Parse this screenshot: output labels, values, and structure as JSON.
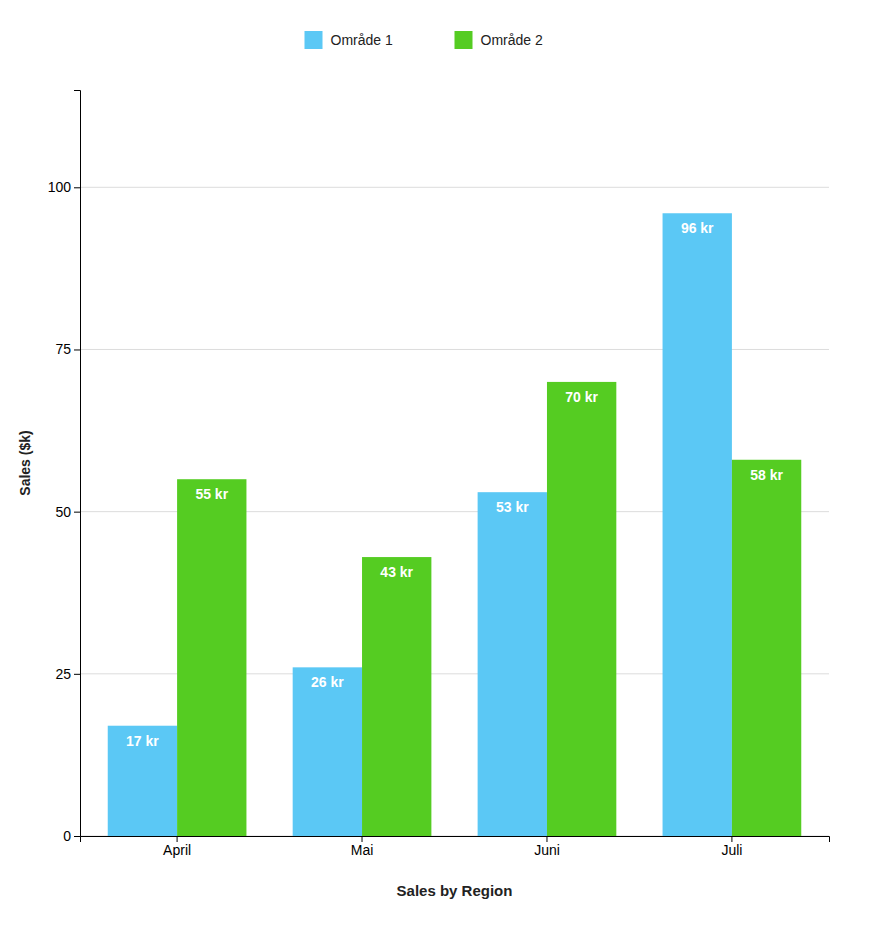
{
  "chart_data": {
    "type": "bar",
    "categories": [
      "April",
      "Mai",
      "Juni",
      "Juli"
    ],
    "series": [
      {
        "name": "Område 1",
        "color": "#5bc8f5",
        "values": [
          17,
          26,
          53,
          96
        ],
        "value_labels": [
          "17 kr",
          "26 kr",
          "53 kr",
          "96 kr"
        ]
      },
      {
        "name": "Område 2",
        "color": "#55cc22",
        "values": [
          55,
          43,
          70,
          58
        ],
        "value_labels": [
          "55 kr",
          "43 kr",
          "70 kr",
          "58 kr"
        ]
      }
    ],
    "xlabel": "Sales by Region",
    "ylabel": "Sales ($k)",
    "ylim": [
      0,
      115
    ],
    "yticks": [
      0,
      25,
      50,
      75,
      100
    ],
    "grid": true,
    "legend": "top",
    "data_labels": true
  }
}
